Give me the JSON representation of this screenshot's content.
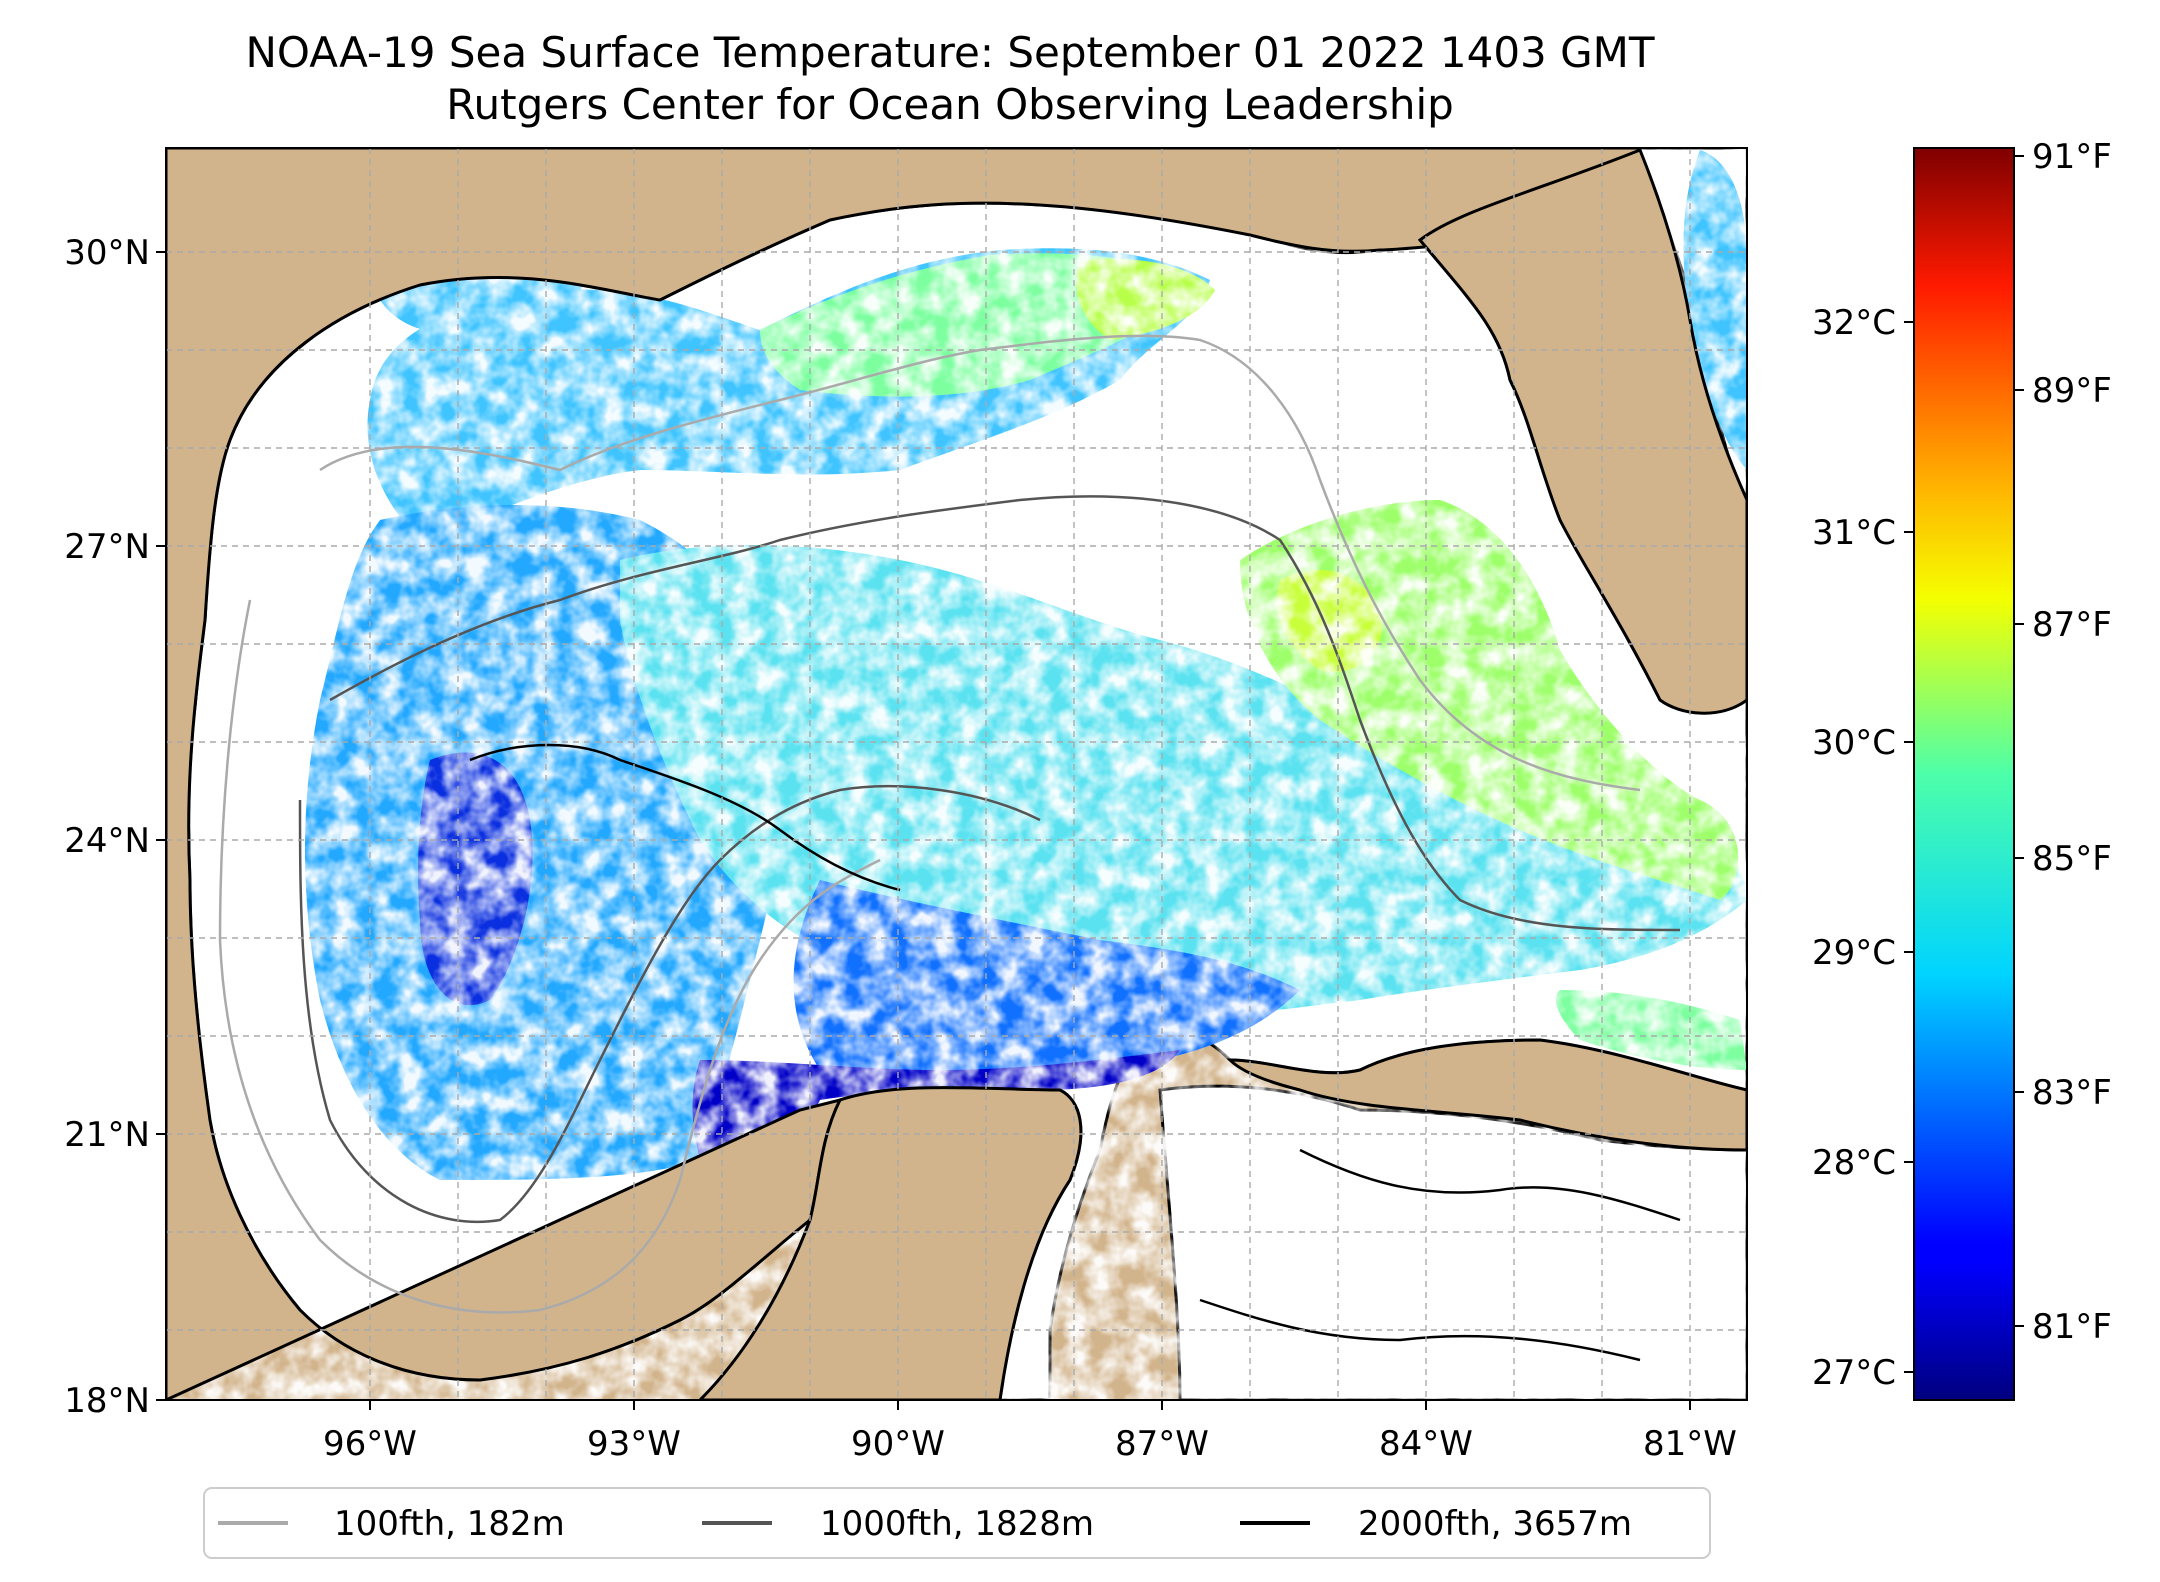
{
  "title": {
    "line1": "NOAA-19 Sea Surface Temperature: September 01 2022 1403 GMT",
    "line2": "Rutgers Center for Ocean Observing Leadership"
  },
  "map": {
    "lon_ticks": [
      "96°W",
      "93°W",
      "90°W",
      "87°W",
      "84°W",
      "81°W"
    ],
    "lat_ticks": [
      "30°N",
      "27°N",
      "24°N",
      "21°N",
      "18°N"
    ],
    "land_color": "#d2b48c",
    "nodata_color": "#ffffff",
    "grid": true
  },
  "colorbar": {
    "colormap": "jet",
    "celsius_ticks": [
      "32°C",
      "31°C",
      "30°C",
      "29°C",
      "28°C",
      "27°C"
    ],
    "fahrenheit_ticks": [
      "91°F",
      "89°F",
      "87°F",
      "85°F",
      "83°F",
      "81°F"
    ]
  },
  "legend": {
    "items": [
      {
        "label": "100fth, 182m",
        "color": "#aaaaaa"
      },
      {
        "label": "1000fth, 1828m",
        "color": "#555555"
      },
      {
        "label": "2000fth, 3657m",
        "color": "#000000"
      }
    ]
  }
}
